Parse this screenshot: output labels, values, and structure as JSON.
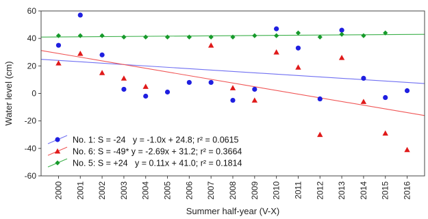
{
  "chart_data": {
    "type": "scatter",
    "title": "",
    "xlabel": "Summer half-year (V-X)",
    "ylabel": "Water level (cm)",
    "xlim": [
      1999.2,
      2016.8
    ],
    "ylim": [
      -60,
      60
    ],
    "x_ticks": [
      2000,
      2001,
      2002,
      2003,
      2004,
      2005,
      2006,
      2007,
      2008,
      2009,
      2010,
      2011,
      2012,
      2013,
      2014,
      2015,
      2016
    ],
    "y_ticks": [
      60,
      40,
      20,
      0,
      -20,
      -40,
      -60
    ],
    "grid": false,
    "legend_position": "bottom-left",
    "series": [
      {
        "name": "No. 1: S = -24   y = -1.0x + 24.8; r² = 0.0615",
        "color": "#1f1fe0",
        "marker": "circle",
        "x": [
          2000,
          2001,
          2002,
          2003,
          2004,
          2005,
          2006,
          2007,
          2008,
          2009,
          2010,
          2011,
          2012,
          2013,
          2014,
          2015,
          2016
        ],
        "y": [
          35,
          57,
          28,
          3,
          -2,
          1,
          8,
          8,
          -5,
          3,
          47,
          33,
          -4,
          46,
          11,
          -3,
          2
        ],
        "trend": {
          "x": [
            1999.2,
            2016.8
          ],
          "y": [
            24.8,
            7.2
          ]
        },
        "trend_color": "#6f6ff2"
      },
      {
        "name": "No. 6: S = -49* y = -2.69x + 31.2; r² = 0.3664",
        "color": "#e01a1a",
        "marker": "triangle",
        "x": [
          2000,
          2001,
          2002,
          2003,
          2004,
          2005,
          2006,
          2007,
          2008,
          2009,
          2010,
          2011,
          2012,
          2013,
          2014,
          2015,
          2016
        ],
        "y": [
          22,
          29,
          15,
          11,
          5,
          null,
          null,
          35,
          4,
          -5,
          30,
          19,
          -30,
          26,
          -6,
          -29,
          -41
        ],
        "trend": {
          "x": [
            1999.2,
            2016.8
          ],
          "y": [
            31.2,
            -16.1
          ]
        },
        "trend_color": "#f05555"
      },
      {
        "name": "No. 5: S = +24   y = 0.11x + 41.0; r² = 0.1814",
        "color": "#179a2b",
        "marker": "diamond",
        "x": [
          2000,
          2001,
          2002,
          2003,
          2004,
          2005,
          2006,
          2007,
          2008,
          2009,
          2010,
          2011,
          2012,
          2013,
          2014,
          2015,
          2016
        ],
        "y": [
          42,
          42,
          42,
          41,
          41,
          41,
          41,
          41,
          41,
          42,
          42,
          44,
          41,
          43,
          42,
          44,
          null
        ],
        "trend": {
          "x": [
            1999.2,
            2016.8
          ],
          "y": [
            41.0,
            43.0
          ]
        },
        "trend_color": "#3cb04a"
      }
    ]
  }
}
